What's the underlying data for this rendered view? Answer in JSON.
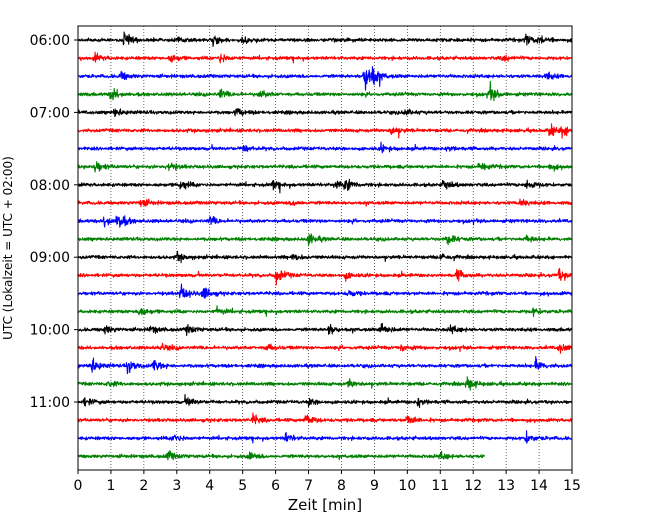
{
  "chart_data": {
    "type": "line",
    "title": "",
    "xlabel": "Zeit  [min]",
    "ylabel": "UTC (Lokalzeit = UTC + 02:00)",
    "xlim": [
      0,
      15
    ],
    "x_ticks": [
      "0",
      "1",
      "2",
      "3",
      "4",
      "5",
      "6",
      "7",
      "8",
      "9",
      "10",
      "11",
      "12",
      "13",
      "14",
      "15"
    ],
    "y_ticks": [
      {
        "label": "06:00",
        "trace": 0
      },
      {
        "label": "07:00",
        "trace": 4
      },
      {
        "label": "08:00",
        "trace": 8
      },
      {
        "label": "09:00",
        "trace": 12
      },
      {
        "label": "10:00",
        "trace": 16
      },
      {
        "label": "11:00",
        "trace": 20
      }
    ],
    "grid": "vertical dotted at each minute",
    "trace_interval_min": 15,
    "colors": [
      "#000000",
      "#ff0000",
      "#0000ff",
      "#008000"
    ],
    "series": [
      {
        "start": "06:00",
        "end_min": 15,
        "color": "#000000",
        "events": [
          {
            "t": 1.4,
            "a": 1.6
          },
          {
            "t": 3.0,
            "a": 0.9
          },
          {
            "t": 4.1,
            "a": 0.8
          },
          {
            "t": 5.0,
            "a": 0.9
          },
          {
            "t": 13.6,
            "a": 1.0
          },
          {
            "t": 14.0,
            "a": 0.8
          }
        ]
      },
      {
        "start": "06:15",
        "end_min": 15,
        "color": "#ff0000",
        "events": [
          {
            "t": 0.5,
            "a": 0.8
          },
          {
            "t": 2.8,
            "a": 0.8
          },
          {
            "t": 4.3,
            "a": 1.0
          },
          {
            "t": 12.9,
            "a": 0.7
          }
        ]
      },
      {
        "start": "06:30",
        "end_min": 15,
        "color": "#0000ff",
        "events": [
          {
            "t": 8.7,
            "a": 3.5
          },
          {
            "t": 8.9,
            "a": 1.6
          },
          {
            "t": 1.3,
            "a": 0.9
          },
          {
            "t": 14.2,
            "a": 0.8
          }
        ]
      },
      {
        "start": "06:45",
        "end_min": 15,
        "color": "#008000",
        "events": [
          {
            "t": 1.0,
            "a": 1.4
          },
          {
            "t": 4.3,
            "a": 0.9
          },
          {
            "t": 5.5,
            "a": 0.8
          },
          {
            "t": 12.5,
            "a": 1.5
          }
        ]
      },
      {
        "start": "07:00",
        "end_min": 15,
        "color": "#000000",
        "events": [
          {
            "t": 1.1,
            "a": 0.9
          },
          {
            "t": 4.8,
            "a": 0.9
          },
          {
            "t": 9.9,
            "a": 0.7
          }
        ]
      },
      {
        "start": "07:15",
        "end_min": 15,
        "color": "#ff0000",
        "events": [
          {
            "t": 9.5,
            "a": 0.9
          },
          {
            "t": 14.3,
            "a": 1.3
          },
          {
            "t": 14.7,
            "a": 1.0
          }
        ]
      },
      {
        "start": "07:30",
        "end_min": 15,
        "color": "#0000ff",
        "events": [
          {
            "t": 5.0,
            "a": 0.8
          },
          {
            "t": 9.2,
            "a": 0.7
          },
          {
            "t": 11.2,
            "a": 0.7
          }
        ]
      },
      {
        "start": "07:45",
        "end_min": 15,
        "color": "#008000",
        "events": [
          {
            "t": 0.5,
            "a": 1.3
          },
          {
            "t": 2.7,
            "a": 1.1
          },
          {
            "t": 12.2,
            "a": 1.0
          },
          {
            "t": 14.3,
            "a": 0.7
          }
        ]
      },
      {
        "start": "08:00",
        "end_min": 15,
        "color": "#000000",
        "events": [
          {
            "t": 3.1,
            "a": 1.1
          },
          {
            "t": 5.9,
            "a": 0.8
          },
          {
            "t": 7.8,
            "a": 1.0
          },
          {
            "t": 8.1,
            "a": 1.2
          },
          {
            "t": 11.1,
            "a": 1.1
          },
          {
            "t": 13.6,
            "a": 1.3
          }
        ]
      },
      {
        "start": "08:15",
        "end_min": 15,
        "color": "#ff0000",
        "events": [
          {
            "t": 1.9,
            "a": 0.9
          },
          {
            "t": 6.5,
            "a": 0.7
          },
          {
            "t": 13.4,
            "a": 0.8
          }
        ]
      },
      {
        "start": "08:30",
        "end_min": 15,
        "color": "#0000ff",
        "events": [
          {
            "t": 1.2,
            "a": 2.0
          },
          {
            "t": 0.8,
            "a": 1.2
          },
          {
            "t": 4.0,
            "a": 0.9
          }
        ]
      },
      {
        "start": "08:45",
        "end_min": 15,
        "color": "#008000",
        "events": [
          {
            "t": 7.0,
            "a": 1.2
          },
          {
            "t": 11.2,
            "a": 1.3
          },
          {
            "t": 13.6,
            "a": 0.8
          }
        ]
      },
      {
        "start": "09:00",
        "end_min": 15,
        "color": "#000000",
        "events": [
          {
            "t": 3.0,
            "a": 0.9
          },
          {
            "t": 6.5,
            "a": 0.8
          },
          {
            "t": 11.0,
            "a": 0.8
          }
        ]
      },
      {
        "start": "09:15",
        "end_min": 15,
        "color": "#ff0000",
        "events": [
          {
            "t": 6.0,
            "a": 1.8
          },
          {
            "t": 8.1,
            "a": 0.8
          },
          {
            "t": 11.5,
            "a": 1.0
          },
          {
            "t": 14.6,
            "a": 1.1
          }
        ]
      },
      {
        "start": "09:30",
        "end_min": 15,
        "color": "#0000ff",
        "events": [
          {
            "t": 3.1,
            "a": 1.8
          },
          {
            "t": 3.8,
            "a": 1.4
          },
          {
            "t": 8.2,
            "a": 0.7
          }
        ]
      },
      {
        "start": "09:45",
        "end_min": 15,
        "color": "#008000",
        "events": [
          {
            "t": 1.8,
            "a": 1.3
          },
          {
            "t": 4.2,
            "a": 0.8
          },
          {
            "t": 13.8,
            "a": 0.7
          }
        ]
      },
      {
        "start": "10:00",
        "end_min": 15,
        "color": "#000000",
        "events": [
          {
            "t": 0.8,
            "a": 0.9
          },
          {
            "t": 2.2,
            "a": 0.8
          },
          {
            "t": 3.3,
            "a": 0.9
          },
          {
            "t": 7.6,
            "a": 1.1
          },
          {
            "t": 9.2,
            "a": 1.4
          },
          {
            "t": 11.3,
            "a": 0.8
          }
        ]
      },
      {
        "start": "10:15",
        "end_min": 15,
        "color": "#ff0000",
        "events": [
          {
            "t": 2.5,
            "a": 0.8
          },
          {
            "t": 5.7,
            "a": 0.8
          },
          {
            "t": 9.8,
            "a": 0.8
          },
          {
            "t": 14.6,
            "a": 1.0
          }
        ]
      },
      {
        "start": "10:30",
        "end_min": 15,
        "color": "#0000ff",
        "events": [
          {
            "t": 0.4,
            "a": 1.6
          },
          {
            "t": 1.5,
            "a": 1.4
          },
          {
            "t": 2.3,
            "a": 1.2
          },
          {
            "t": 13.9,
            "a": 1.3
          }
        ]
      },
      {
        "start": "10:45",
        "end_min": 15,
        "color": "#008000",
        "events": [
          {
            "t": 11.8,
            "a": 1.5
          },
          {
            "t": 8.2,
            "a": 0.8
          },
          {
            "t": 0.9,
            "a": 0.7
          }
        ]
      },
      {
        "start": "11:00",
        "end_min": 15,
        "color": "#000000",
        "events": [
          {
            "t": 0.2,
            "a": 0.9
          },
          {
            "t": 3.3,
            "a": 0.9
          },
          {
            "t": 10.3,
            "a": 1.2
          },
          {
            "t": 7.0,
            "a": 0.7
          }
        ]
      },
      {
        "start": "11:15",
        "end_min": 15,
        "color": "#ff0000",
        "events": [
          {
            "t": 5.3,
            "a": 1.0
          },
          {
            "t": 6.9,
            "a": 1.4
          },
          {
            "t": 10.0,
            "a": 1.2
          }
        ]
      },
      {
        "start": "11:30",
        "end_min": 15,
        "color": "#0000ff",
        "events": [
          {
            "t": 2.9,
            "a": 0.9
          },
          {
            "t": 6.3,
            "a": 0.9
          },
          {
            "t": 13.6,
            "a": 1.1
          }
        ]
      },
      {
        "start": "11:45",
        "end_min": 12.35,
        "color": "#008000",
        "events": [
          {
            "t": 2.7,
            "a": 1.1
          },
          {
            "t": 5.2,
            "a": 0.8
          },
          {
            "t": 11.0,
            "a": 0.7
          }
        ]
      }
    ]
  }
}
